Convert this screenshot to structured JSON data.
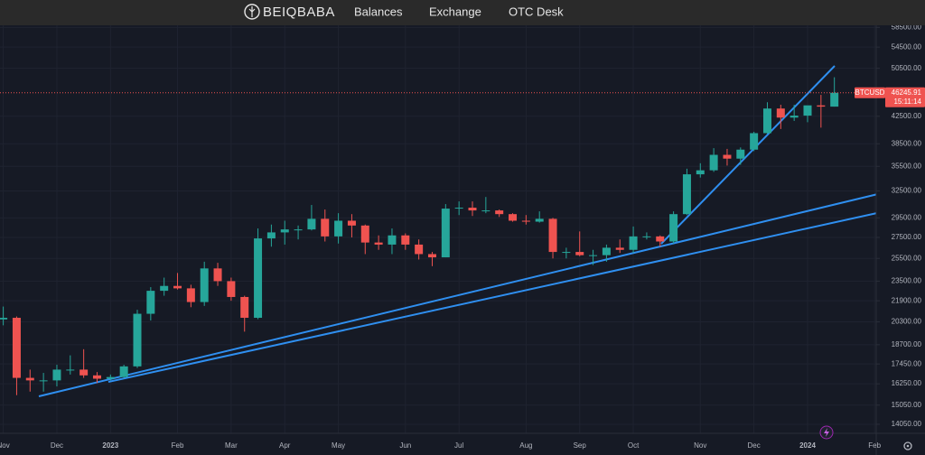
{
  "header": {
    "logo": "BEIQBABA",
    "nav": [
      "Balances",
      "Exchange",
      "OTC Desk"
    ]
  },
  "chart_data": {
    "type": "candlestick",
    "symbol": "BTCUSD",
    "log_scale": true,
    "grid": true,
    "up_color": "#26a69a",
    "down_color": "#ef5350",
    "categories": [
      "Nov",
      null,
      null,
      null,
      "Dec",
      null,
      null,
      null,
      "2023",
      null,
      null,
      null,
      null,
      "Feb",
      null,
      null,
      null,
      "Mar",
      null,
      null,
      null,
      "Apr",
      null,
      null,
      null,
      "May",
      null,
      null,
      null,
      null,
      "Jun",
      null,
      null,
      null,
      "Jul",
      null,
      null,
      null,
      null,
      "Aug",
      null,
      null,
      null,
      "Sep",
      null,
      null,
      null,
      "Oct",
      null,
      null,
      null,
      null,
      "Nov",
      null,
      null,
      null,
      "Dec",
      null,
      null,
      null,
      "2024",
      null,
      null,
      null,
      null,
      "Feb",
      null
    ],
    "open": [
      20480,
      20600,
      16600,
      16450,
      16450,
      17100,
      17100,
      16750,
      16550,
      16650,
      17300,
      20900,
      22700,
      23100,
      22900,
      21800,
      24600,
      23500,
      22200,
      20600,
      27400,
      28000,
      28300,
      28300,
      29400,
      27600,
      29200,
      28700,
      27000,
      26800,
      27700,
      26800,
      25900,
      25600,
      30500,
      30600,
      30300,
      30300,
      29900,
      29200,
      29100,
      29400,
      26100,
      26100,
      25800,
      25800,
      26500,
      26300,
      27600,
      27600,
      27100,
      29900,
      34500,
      35000,
      37000,
      36500,
      37700,
      40000,
      43700,
      42300,
      42600,
      44200,
      44000,
      null,
      null,
      null,
      null
    ],
    "high": [
      21450,
      20700,
      17100,
      16900,
      17400,
      18000,
      18400,
      16950,
      16800,
      17400,
      21200,
      23000,
      23800,
      24200,
      23200,
      25200,
      25100,
      23800,
      22300,
      28400,
      28800,
      29200,
      28700,
      30900,
      30400,
      30000,
      29900,
      28800,
      27700,
      28400,
      27900,
      27300,
      26100,
      31000,
      31300,
      31300,
      31800,
      30400,
      30000,
      29800,
      30200,
      29500,
      26500,
      28100,
      26300,
      26800,
      27300,
      28600,
      28000,
      27700,
      30200,
      35200,
      35900,
      37900,
      37800,
      38000,
      40200,
      44700,
      44300,
      44300,
      43800,
      45900,
      48900,
      null,
      null,
      null,
      null
    ],
    "low": [
      20050,
      15600,
      15800,
      15800,
      16100,
      16800,
      16600,
      16300,
      16450,
      16600,
      17200,
      20400,
      22300,
      22800,
      21400,
      21500,
      23100,
      21900,
      19600,
      20500,
      26600,
      26800,
      27300,
      28200,
      27100,
      26900,
      27500,
      25900,
      26300,
      25900,
      26300,
      25400,
      24800,
      25600,
      29800,
      29700,
      30000,
      29600,
      29100,
      28800,
      29000,
      25500,
      25500,
      25700,
      24900,
      25200,
      26000,
      26000,
      27300,
      26600,
      26900,
      29800,
      34100,
      34800,
      35600,
      35700,
      37500,
      39900,
      40600,
      41800,
      41600,
      40800,
      44000,
      null,
      null,
      null,
      null
    ],
    "close": [
      20600,
      16600,
      16450,
      16450,
      17100,
      17100,
      16750,
      16550,
      16650,
      17300,
      20900,
      22700,
      23100,
      22900,
      21800,
      24600,
      23500,
      22200,
      20600,
      27400,
      28000,
      28300,
      28300,
      29400,
      27600,
      29200,
      28700,
      27000,
      26800,
      27700,
      26800,
      25900,
      25600,
      30500,
      30600,
      30300,
      30300,
      29900,
      29200,
      29100,
      29400,
      26100,
      26100,
      25800,
      25800,
      26500,
      26300,
      27600,
      27600,
      27100,
      29900,
      34500,
      35000,
      37000,
      36500,
      37700,
      40000,
      43700,
      42300,
      42600,
      44200,
      44000,
      46245.91,
      null,
      null,
      null,
      null
    ],
    "last_price": 46245.91,
    "countdown": "15:11:14",
    "ylim": [
      13600,
      60100
    ],
    "yticks": [
      {
        "value": 14050,
        "label": "14050.00"
      },
      {
        "value": 15050,
        "label": "15050.00"
      },
      {
        "value": 16250,
        "label": "16250.00"
      },
      {
        "value": 17450,
        "label": "17450.00"
      },
      {
        "value": 18700,
        "label": "18700.00"
      },
      {
        "value": 20300,
        "label": "20300.00"
      },
      {
        "value": 21900,
        "label": "21900.00"
      },
      {
        "value": 23500,
        "label": "23500.00"
      },
      {
        "value": 25500,
        "label": "25500.00"
      },
      {
        "value": 27500,
        "label": "27500.00"
      },
      {
        "value": 29500,
        "label": "29500.00"
      },
      {
        "value": 32500,
        "label": "32500.00"
      },
      {
        "value": 35500,
        "label": "35500.00"
      },
      {
        "value": 38500,
        "label": "38500.00"
      },
      {
        "value": 42500,
        "label": "42500.00"
      },
      {
        "value": 50500,
        "label": "50500.00"
      },
      {
        "value": 54500,
        "label": "54500.00"
      },
      {
        "value": 58500,
        "label": "58500.00"
      }
    ]
  }
}
